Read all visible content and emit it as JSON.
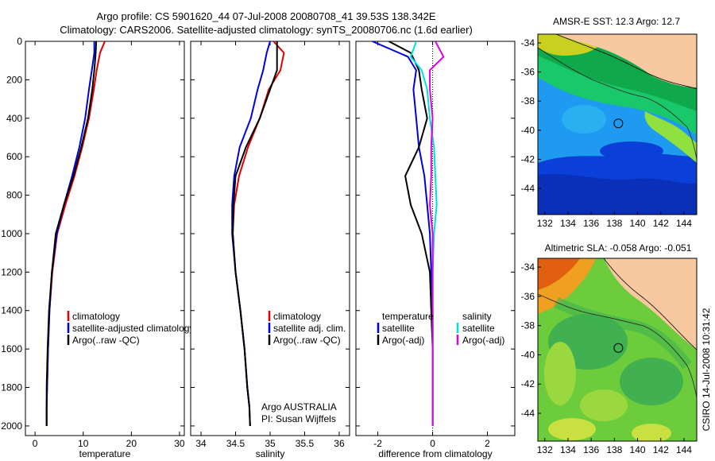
{
  "header": {
    "line1": "Argo profile: CS 5901620_44 07-Jul-2008 20080708_41 39.53S 138.342E",
    "line2": "Climatology: CARS2006. Satellite-adjusted climatology: synTS_20080706.nc (1.6d earlier)"
  },
  "colors": {
    "climatology": "#e00000",
    "satellite": "#0000e0",
    "argo": "#000000",
    "satellite_diff": "#00e0e0",
    "argo_adj": "#e000e0"
  },
  "chart_data": [
    {
      "type": "line",
      "id": "temperature",
      "xlabel": "temperature",
      "xlim": [
        -2,
        31
      ],
      "ylim": [
        2050,
        0
      ],
      "y_reversed": true,
      "xticks": [
        "0",
        "10",
        "20",
        "30"
      ],
      "xtick_values": [
        0,
        10,
        20,
        30
      ],
      "yticks": [
        "0",
        "200",
        "400",
        "600",
        "800",
        "1000",
        "1200",
        "1400",
        "1600",
        "1800",
        "2000"
      ],
      "ytick_values": [
        0,
        200,
        400,
        600,
        800,
        1000,
        1200,
        1400,
        1600,
        1800,
        2000
      ],
      "legend": [
        "climatology",
        "satellite-adjusted climatology",
        "Argo(..raw -QC)"
      ],
      "series": [
        {
          "name": "climatology",
          "color": "#e00000",
          "x": [
            14.5,
            13.5,
            12.8,
            12.2,
            11.2,
            9.8,
            8.2,
            6.3,
            4.6,
            3.6,
            3.0,
            2.7,
            2.5,
            2.4,
            2.4
          ],
          "y": [
            0,
            60,
            150,
            250,
            400,
            550,
            700,
            850,
            1000,
            1200,
            1400,
            1600,
            1800,
            1900,
            2000
          ]
        },
        {
          "name": "satellite-adjusted climatology",
          "color": "#0000e0",
          "x": [
            12.3,
            12.3,
            11.8,
            11.2,
            10.4,
            9.2,
            7.7,
            6.0,
            4.5,
            3.5,
            3.0,
            2.7,
            2.5,
            2.4,
            2.4
          ],
          "y": [
            0,
            60,
            150,
            250,
            400,
            550,
            700,
            850,
            1000,
            1200,
            1400,
            1600,
            1800,
            1900,
            2000
          ]
        },
        {
          "name": "Argo(..raw -QC)",
          "color": "#000000",
          "x": [
            12.7,
            12.6,
            12.3,
            11.9,
            11.0,
            9.6,
            8.0,
            6.0,
            4.3,
            3.5,
            2.9,
            2.6,
            2.4,
            2.4,
            2.4
          ],
          "y": [
            0,
            60,
            150,
            250,
            400,
            550,
            700,
            850,
            1000,
            1200,
            1400,
            1600,
            1800,
            1900,
            2000
          ]
        }
      ]
    },
    {
      "type": "line",
      "id": "salinity",
      "xlabel": "salinity",
      "xlim": [
        33.85,
        36.15
      ],
      "ylim": [
        2050,
        0
      ],
      "y_reversed": true,
      "xticks": [
        "34",
        "34.5",
        "35",
        "35.5",
        "36"
      ],
      "xtick_values": [
        34,
        34.5,
        35,
        35.5,
        36
      ],
      "legend": [
        "climatology",
        "satellite adj. clim.",
        "Argo(..raw -QC)"
      ],
      "annotations": [
        "Argo AUSTRALIA",
        "PI: Susan Wijffels"
      ],
      "series": [
        {
          "name": "climatology",
          "color": "#e00000",
          "x": [
            35.05,
            35.2,
            35.15,
            34.98,
            34.85,
            34.68,
            34.55,
            34.48,
            34.46,
            34.5,
            34.57,
            34.63,
            34.67,
            34.7,
            34.71
          ],
          "y": [
            0,
            60,
            150,
            250,
            400,
            550,
            700,
            850,
            1000,
            1200,
            1400,
            1600,
            1800,
            1900,
            2000
          ]
        },
        {
          "name": "satellite adj. clim.",
          "color": "#0000e0",
          "x": [
            35.0,
            34.95,
            34.9,
            34.82,
            34.72,
            34.56,
            34.48,
            34.45,
            34.45,
            34.5,
            34.57,
            34.63,
            34.67,
            34.7,
            34.71
          ],
          "y": [
            0,
            60,
            150,
            250,
            400,
            550,
            700,
            850,
            1000,
            1200,
            1400,
            1600,
            1800,
            1900,
            2000
          ]
        },
        {
          "name": "Argo(..raw -QC)",
          "color": "#000000",
          "x": [
            35.1,
            35.1,
            35.1,
            35.0,
            34.85,
            34.65,
            34.5,
            34.47,
            34.46,
            34.5,
            34.57,
            34.63,
            34.67,
            34.7,
            34.71
          ],
          "y": [
            0,
            60,
            150,
            250,
            400,
            550,
            700,
            850,
            1000,
            1200,
            1400,
            1600,
            1800,
            1900,
            2000
          ]
        }
      ]
    },
    {
      "type": "line",
      "id": "difference",
      "xlabel": "difference from climatology",
      "xlim": [
        -2.8,
        3.0
      ],
      "ylim": [
        2050,
        0
      ],
      "y_reversed": true,
      "xticks": [
        "-2",
        "0",
        "2"
      ],
      "xtick_values": [
        -2,
        0,
        2
      ],
      "legend_left": {
        "title": "temperature",
        "items": [
          "satellite",
          "Argo(-adj)"
        ]
      },
      "legend_right": {
        "title": "salinity",
        "items": [
          "satellite",
          "Argo(-adj)"
        ]
      },
      "series": [
        {
          "name": "temperature satellite",
          "color": "#0000e0",
          "x": [
            -2.2,
            -0.9,
            -0.6,
            -0.7,
            -0.6,
            -0.5,
            -0.3,
            -0.2,
            -0.1,
            -0.05,
            0,
            0,
            0,
            0
          ],
          "y": [
            0,
            80,
            150,
            250,
            400,
            550,
            700,
            850,
            1000,
            1200,
            1400,
            1600,
            1800,
            2000
          ]
        },
        {
          "name": "temperature Argo(-adj)",
          "color": "#000000",
          "x": [
            -1.6,
            -0.8,
            -0.5,
            -0.4,
            -0.2,
            -0.5,
            -1.0,
            -0.8,
            -0.4,
            -0.1,
            -0.05,
            0,
            0,
            0
          ],
          "y": [
            0,
            60,
            150,
            250,
            400,
            550,
            700,
            850,
            1000,
            1200,
            1400,
            1600,
            1800,
            2000
          ]
        },
        {
          "name": "salinity satellite",
          "color": "#00e0e0",
          "x": [
            -0.6,
            -0.8,
            -0.4,
            -0.2,
            -0.1,
            0.05,
            0.1,
            0.15,
            0.05,
            0,
            0,
            0,
            0,
            0
          ],
          "y": [
            0,
            80,
            150,
            250,
            400,
            550,
            700,
            850,
            1000,
            1200,
            1400,
            1600,
            1800,
            2000
          ]
        },
        {
          "name": "salinity Argo(-adj)",
          "color": "#e000e0",
          "x": [
            0.1,
            0.4,
            -0.1,
            -0.1,
            0.0,
            -0.05,
            -0.05,
            -0.1,
            0.0,
            0,
            0,
            0,
            0,
            0
          ],
          "y": [
            0,
            80,
            150,
            250,
            400,
            550,
            700,
            850,
            1000,
            1200,
            1400,
            1600,
            1800,
            2000
          ]
        }
      ]
    },
    {
      "type": "heatmap",
      "id": "amsr",
      "title": "AMSR-E SST: 12.3 Argo: 12.7",
      "xticks": [
        "132",
        "134",
        "136",
        "138",
        "140",
        "142",
        "144"
      ],
      "yticks": [
        "-34",
        "-36",
        "-38",
        "-40",
        "-42",
        "-44"
      ],
      "marker": {
        "lon": 138.342,
        "lat": -39.53
      }
    },
    {
      "type": "heatmap",
      "id": "sla",
      "title": "Altimetric SLA: -0.058 Argo: -0.051",
      "xticks": [
        "132",
        "134",
        "136",
        "138",
        "140",
        "142",
        "144"
      ],
      "yticks": [
        "-34",
        "-36",
        "-38",
        "-40",
        "-42",
        "-44"
      ],
      "marker": {
        "lon": 138.342,
        "lat": -39.53
      }
    }
  ],
  "side_label": "CSIRO 14-Jul-2008 10:31:42"
}
